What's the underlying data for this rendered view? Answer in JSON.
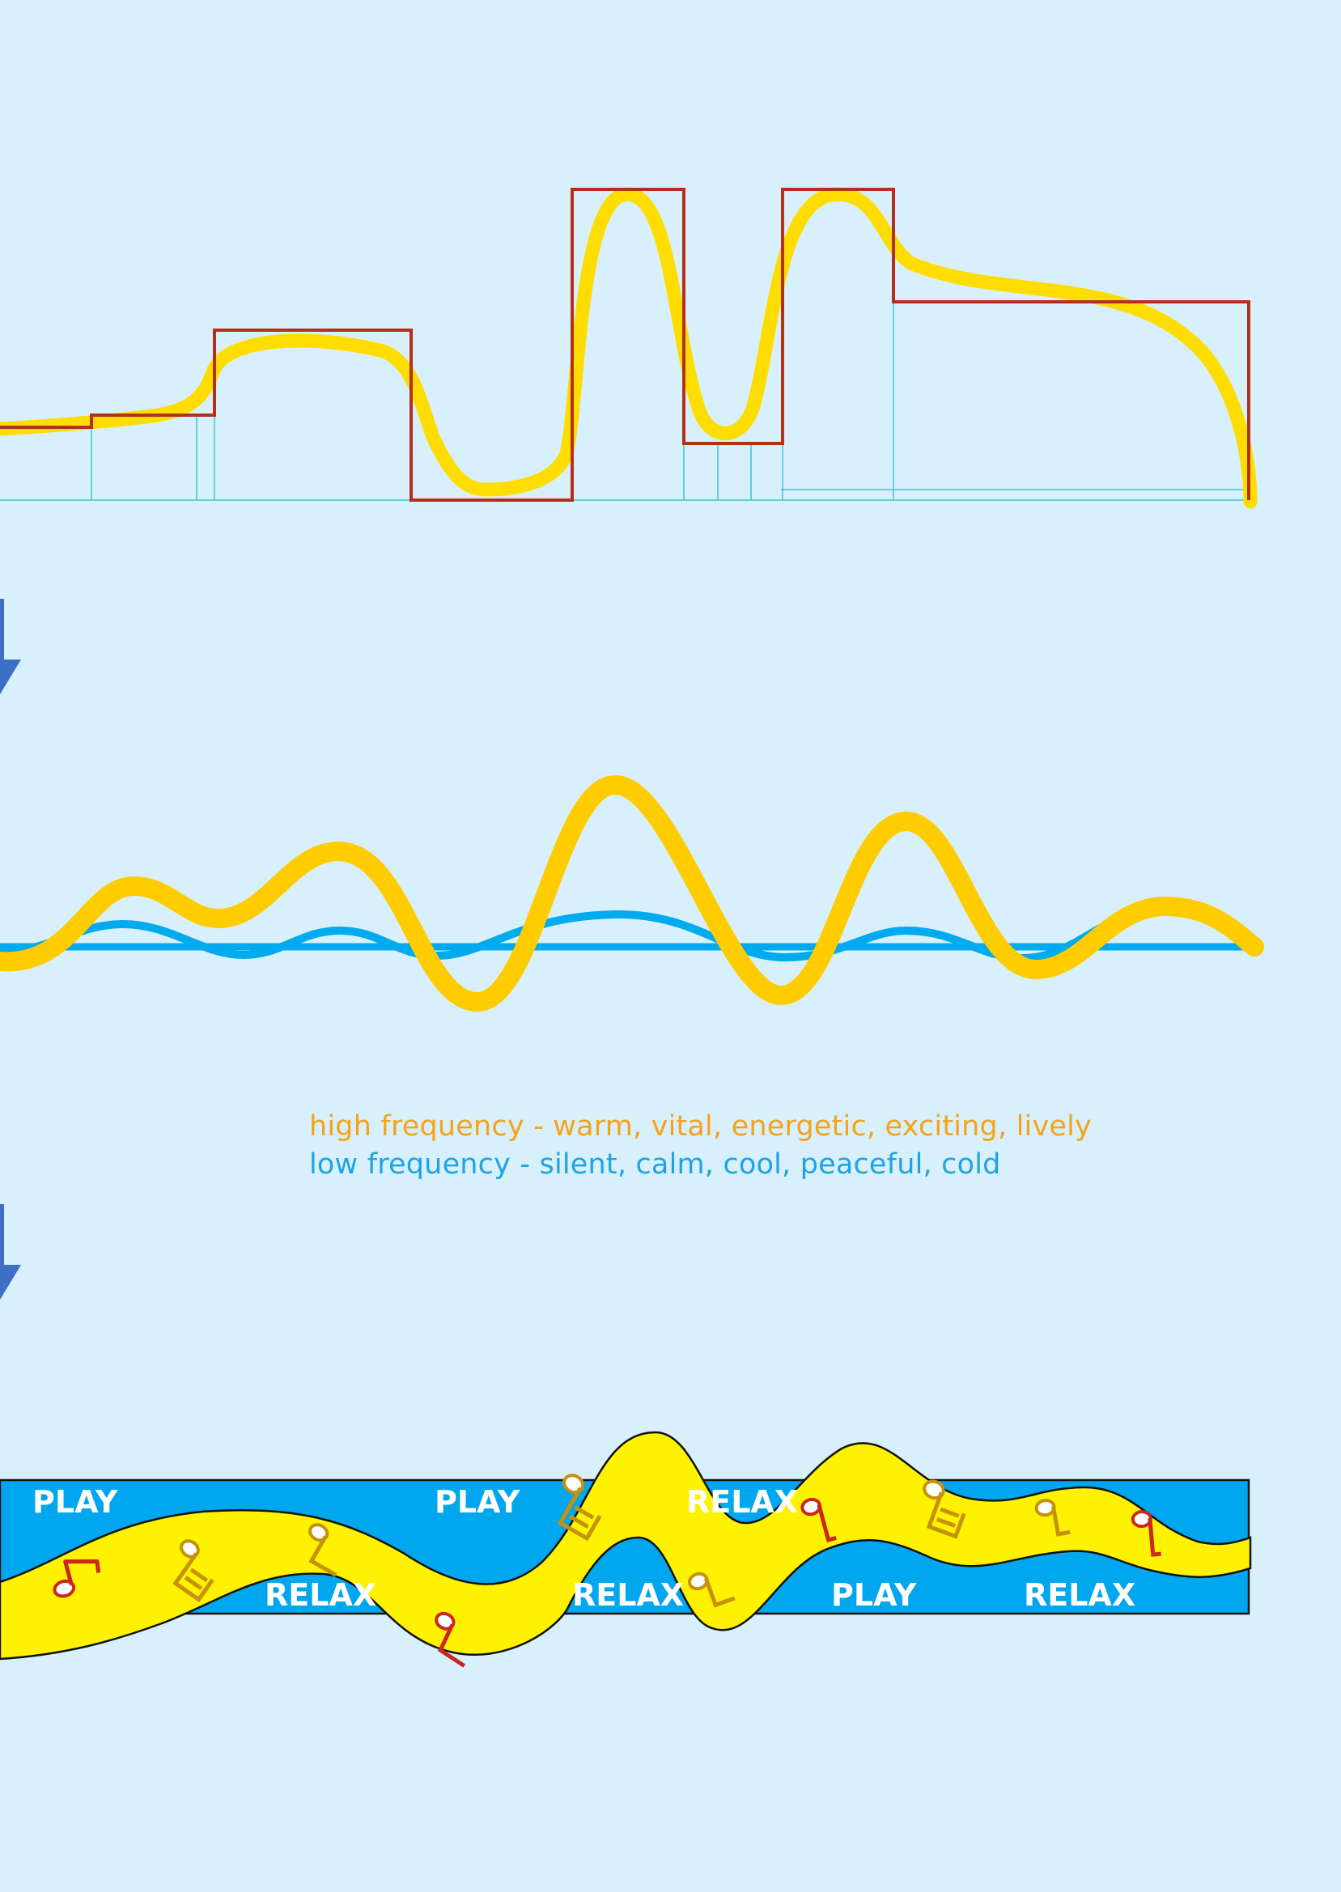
{
  "colors": {
    "background": "#d8f0fc",
    "guide_lines": "#3fc3d9",
    "step_outline": "#b5301a",
    "yellow_wave": "#ffdd00",
    "amber_wave": "#ffcc00",
    "blue_wave": "#00aaee",
    "band_fill": "#00a6ee",
    "ribbon_fill": "#fff200",
    "arrow": "#3d6fc4",
    "high_text": "#f6a21a",
    "low_text": "#1ea3e4",
    "note_red": "#c8281e",
    "note_gold": "#c6920c"
  },
  "icons": [
    "down-arrow-icon",
    "music-note-icon",
    "double-music-note-icon"
  ],
  "legend": {
    "high": "high frequency - warm, vital, energetic, exciting, lively",
    "low": "low frequency - silent, calm, cool, peaceful, cold"
  },
  "zones": {
    "top": [
      "PLAY",
      "PLAY",
      "RELAX"
    ],
    "bottom": [
      "RELAX",
      "RELAX",
      "PLAY",
      "RELAX"
    ]
  }
}
